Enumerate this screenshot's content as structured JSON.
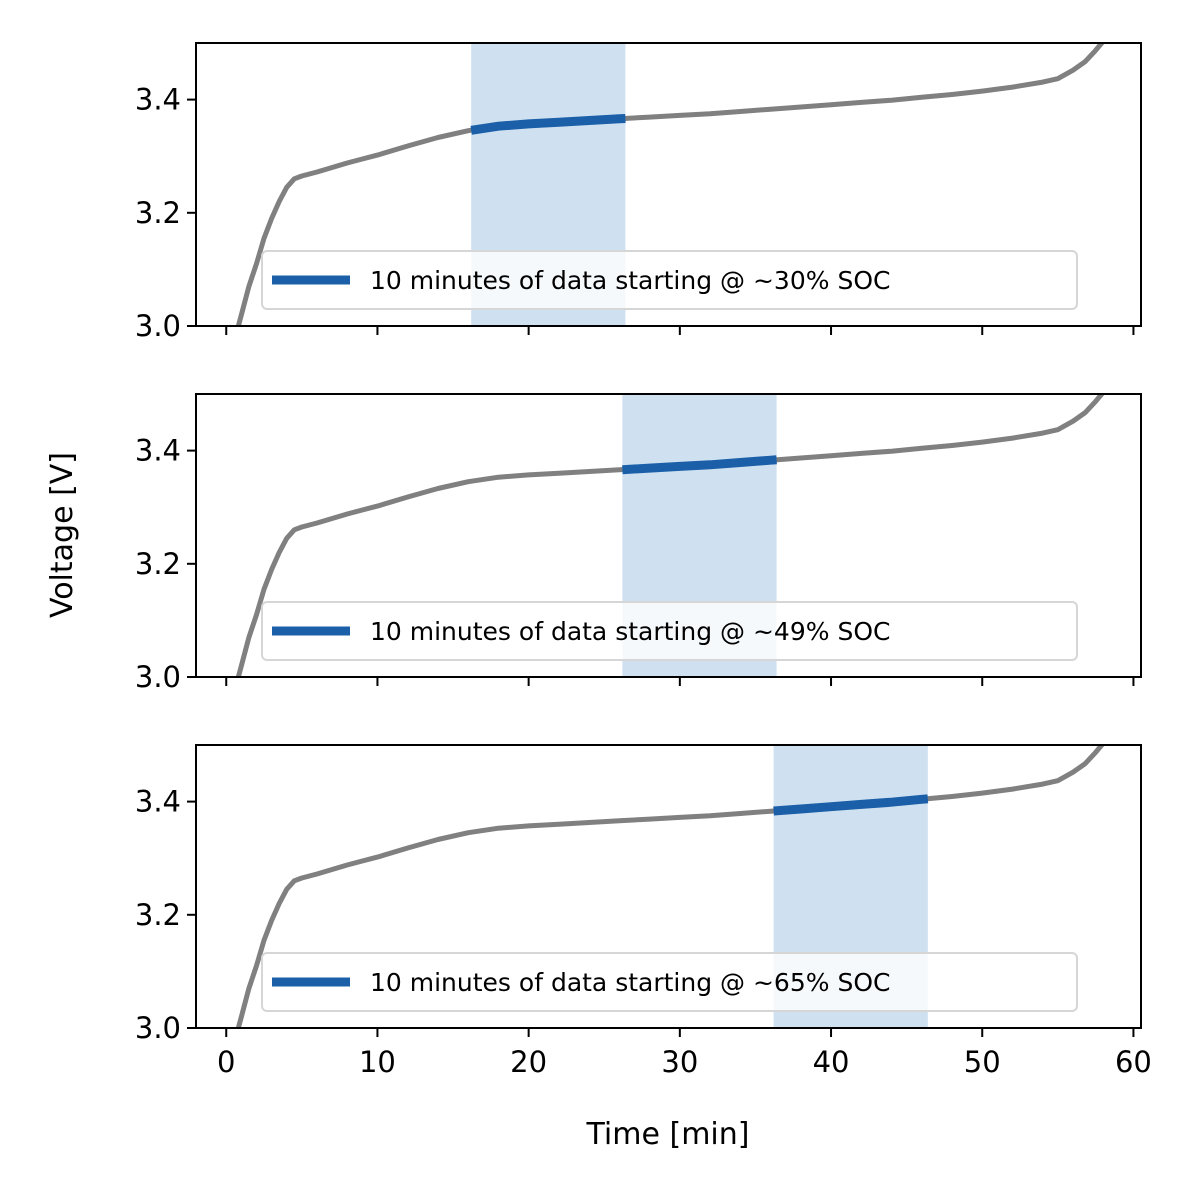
{
  "chart_data": {
    "type": "line",
    "xlabel": "Time [min]",
    "ylabel": "Voltage [V]",
    "xlim": [
      -2,
      60.5
    ],
    "ylim": [
      3.0,
      3.5
    ],
    "x_ticks": [
      0,
      10,
      20,
      30,
      40,
      50,
      60
    ],
    "y_ticks": [
      3.0,
      3.2,
      3.4
    ],
    "x_tick_labels": [
      "0",
      "10",
      "20",
      "30",
      "40",
      "50",
      "60"
    ],
    "y_tick_labels": [
      "3.0",
      "3.2",
      "3.4"
    ],
    "grid": false,
    "shared_x": true,
    "colors": {
      "curve": "#808080",
      "highlight": "#1a5fa8",
      "band": "#cfe1f1"
    },
    "curve": {
      "x": [
        0.7,
        1.0,
        1.5,
        2.0,
        2.5,
        3.0,
        3.5,
        4.0,
        4.5,
        5.0,
        6.0,
        7.0,
        8.0,
        9.0,
        10.0,
        12.0,
        14.0,
        16.0,
        18.0,
        20.0,
        22.0,
        24.0,
        26.0,
        28.0,
        30.0,
        32.0,
        34.0,
        36.0,
        38.0,
        40.0,
        42.0,
        44.0,
        46.0,
        48.0,
        50.0,
        52.0,
        54.0,
        55.0,
        56.0,
        56.8,
        57.5,
        58.0
      ],
      "y": [
        2.99,
        3.02,
        3.07,
        3.11,
        3.155,
        3.19,
        3.22,
        3.245,
        3.26,
        3.265,
        3.272,
        3.28,
        3.288,
        3.295,
        3.302,
        3.318,
        3.333,
        3.345,
        3.353,
        3.357,
        3.36,
        3.363,
        3.366,
        3.369,
        3.372,
        3.375,
        3.379,
        3.383,
        3.387,
        3.391,
        3.395,
        3.399,
        3.404,
        3.409,
        3.415,
        3.422,
        3.431,
        3.437,
        3.452,
        3.467,
        3.487,
        3.503
      ]
    },
    "panels": [
      {
        "legend": "10 minutes of data starting @ ~30% SOC",
        "band": [
          16.2,
          26.4
        ],
        "highlight_x": [
          16.2,
          26.4
        ],
        "legend_position": "lower right"
      },
      {
        "legend": "10 minutes of data starting @ ~49% SOC",
        "band": [
          26.2,
          36.4
        ],
        "highlight_x": [
          26.2,
          36.4
        ],
        "legend_position": "lower right"
      },
      {
        "legend": "10 minutes of data starting @ ~65% SOC",
        "band": [
          36.2,
          46.4
        ],
        "highlight_x": [
          36.2,
          46.4
        ],
        "legend_position": "lower right"
      }
    ]
  }
}
